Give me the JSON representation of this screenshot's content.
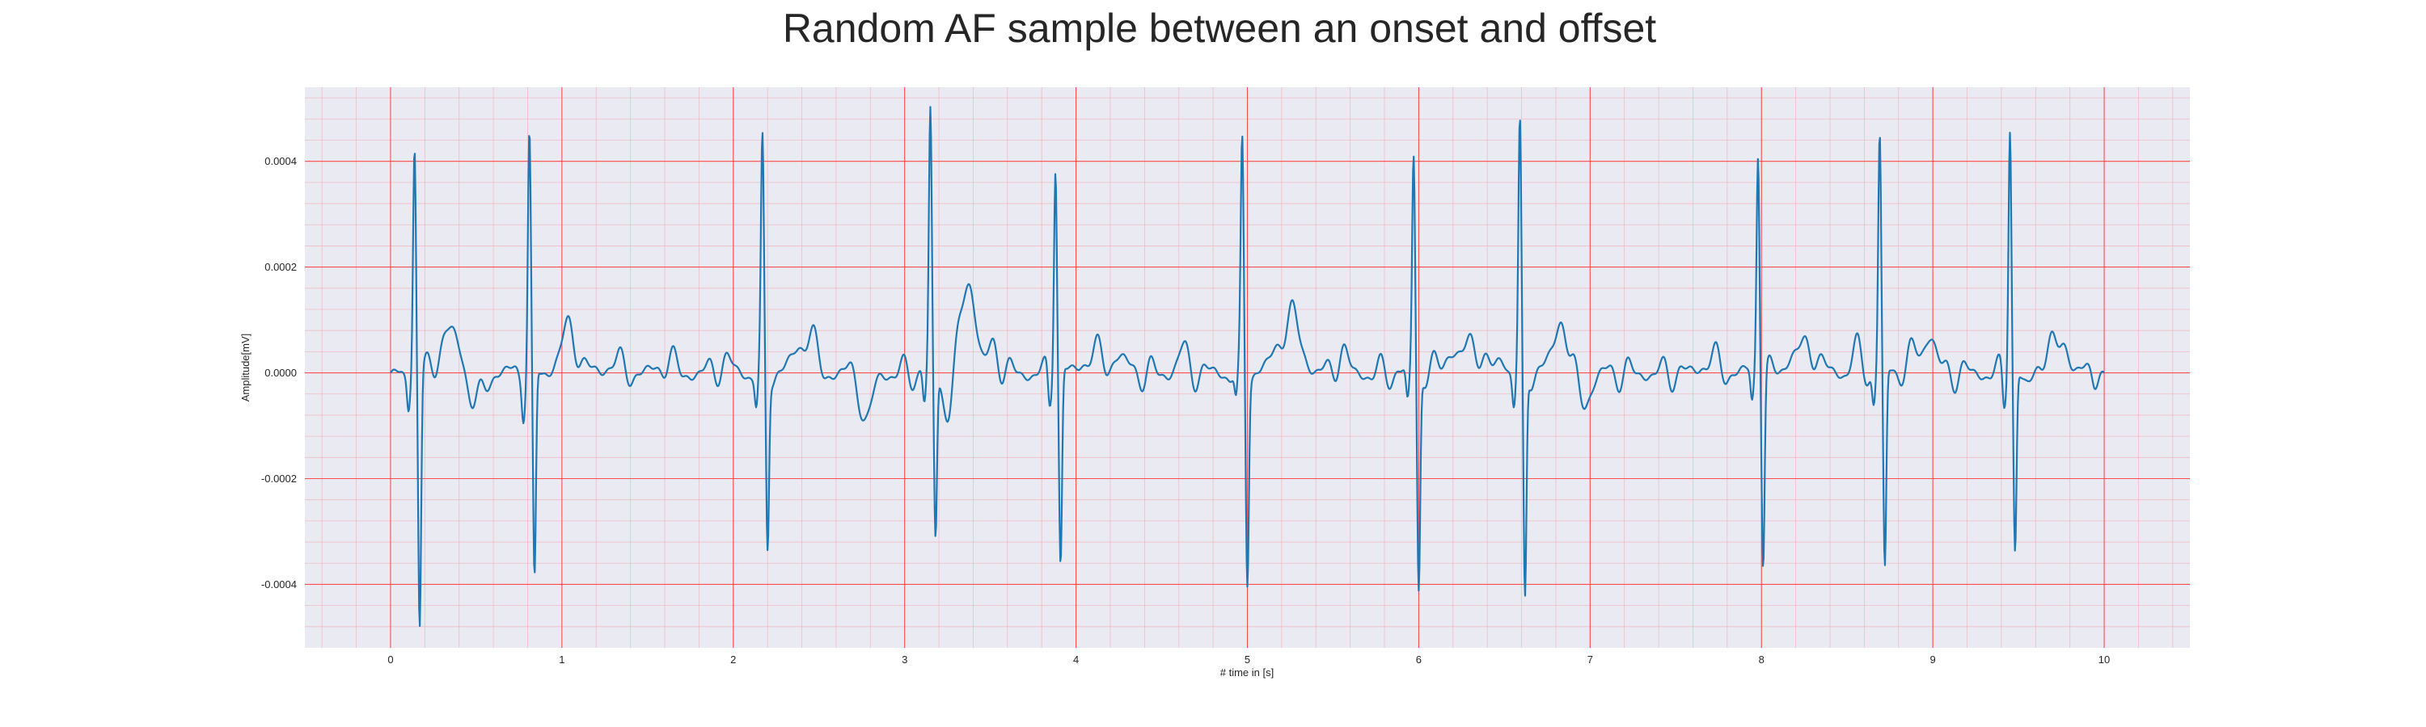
{
  "chart_data": {
    "type": "line",
    "title": "Random AF sample between an onset and offset",
    "xlabel": "# time in [s]",
    "ylabel": "Amplitude[mV]",
    "xlim": [
      -0.5,
      10.5
    ],
    "ylim": [
      -0.00052,
      0.00054
    ],
    "xticks": [
      0,
      1,
      2,
      3,
      4,
      5,
      6,
      7,
      8,
      9,
      10
    ],
    "xtick_labels": [
      "0",
      "1",
      "2",
      "3",
      "4",
      "5",
      "6",
      "7",
      "8",
      "9",
      "10"
    ],
    "yticks": [
      -0.0004,
      -0.0002,
      0.0,
      0.0002,
      0.0004
    ],
    "ytick_labels": [
      "-0.0004",
      "-0.0002",
      "0.0000",
      "0.0002",
      "0.0004"
    ],
    "grid": true,
    "major_grid_color": "#ff4d4d",
    "minor_grid_color": "#f2aab0",
    "plot_background": "#eaeaf2",
    "series": [
      {
        "color": "#1f77b4",
        "beats": [
          {
            "t": 0.14,
            "r": 0.00043,
            "s": -0.00048
          },
          {
            "t": 0.81,
            "r": 0.00045,
            "s": -0.00041
          },
          {
            "t": 2.17,
            "r": 0.00042,
            "s": -0.00033
          },
          {
            "t": 3.15,
            "r": 0.00049,
            "s": -0.00031
          },
          {
            "t": 3.88,
            "r": 0.00041,
            "s": -0.00037
          },
          {
            "t": 4.97,
            "r": 0.00043,
            "s": -0.00038
          },
          {
            "t": 5.97,
            "r": 0.00041,
            "s": -0.00041
          },
          {
            "t": 6.59,
            "r": 0.00046,
            "s": -0.00044
          },
          {
            "t": 7.98,
            "r": 0.00043,
            "s": -0.00035
          },
          {
            "t": 8.69,
            "r": 0.00045,
            "s": -0.00038
          },
          {
            "t": 9.45,
            "r": 0.00048,
            "s": -0.00034
          }
        ],
        "waves": [
          {
            "t": 0.33,
            "a": 4e-05,
            "w": 0.06
          },
          {
            "t": 0.5,
            "a": -6e-05,
            "w": 0.04
          },
          {
            "t": 1.05,
            "a": 4e-05,
            "w": 0.05
          },
          {
            "t": 1.3,
            "a": 3e-05,
            "w": 0.03
          },
          {
            "t": 1.62,
            "a": 3e-05,
            "w": 0.03
          },
          {
            "t": 1.95,
            "a": 2e-05,
            "w": 0.04
          },
          {
            "t": 2.45,
            "a": 6e-05,
            "w": 0.03
          },
          {
            "t": 2.78,
            "a": -0.0001,
            "w": 0.03
          },
          {
            "t": 3.25,
            "a": -7e-05,
            "w": 0.03
          },
          {
            "t": 3.37,
            "a": 0.00014,
            "w": 0.04
          },
          {
            "t": 3.52,
            "a": 5e-05,
            "w": 0.03
          },
          {
            "t": 4.25,
            "a": 3e-05,
            "w": 0.04
          },
          {
            "t": 4.62,
            "a": 4e-05,
            "w": 0.03
          },
          {
            "t": 5.27,
            "a": 9e-05,
            "w": 0.05
          },
          {
            "t": 5.55,
            "a": 4e-05,
            "w": 0.03
          },
          {
            "t": 6.32,
            "a": 6e-05,
            "w": 0.04
          },
          {
            "t": 6.48,
            "a": 3e-05,
            "w": 0.03
          },
          {
            "t": 6.84,
            "a": 7e-05,
            "w": 0.03
          },
          {
            "t": 6.97,
            "a": -5e-05,
            "w": 0.04
          },
          {
            "t": 7.7,
            "a": 3e-05,
            "w": 0.04
          },
          {
            "t": 8.3,
            "a": 4e-05,
            "w": 0.04
          },
          {
            "t": 8.55,
            "a": 4e-05,
            "w": 0.03
          },
          {
            "t": 8.99,
            "a": 6e-05,
            "w": 0.03
          },
          {
            "t": 9.76,
            "a": 6e-05,
            "w": 0.03
          },
          {
            "t": 9.55,
            "a": -3e-05,
            "w": 0.03
          }
        ]
      }
    ]
  }
}
